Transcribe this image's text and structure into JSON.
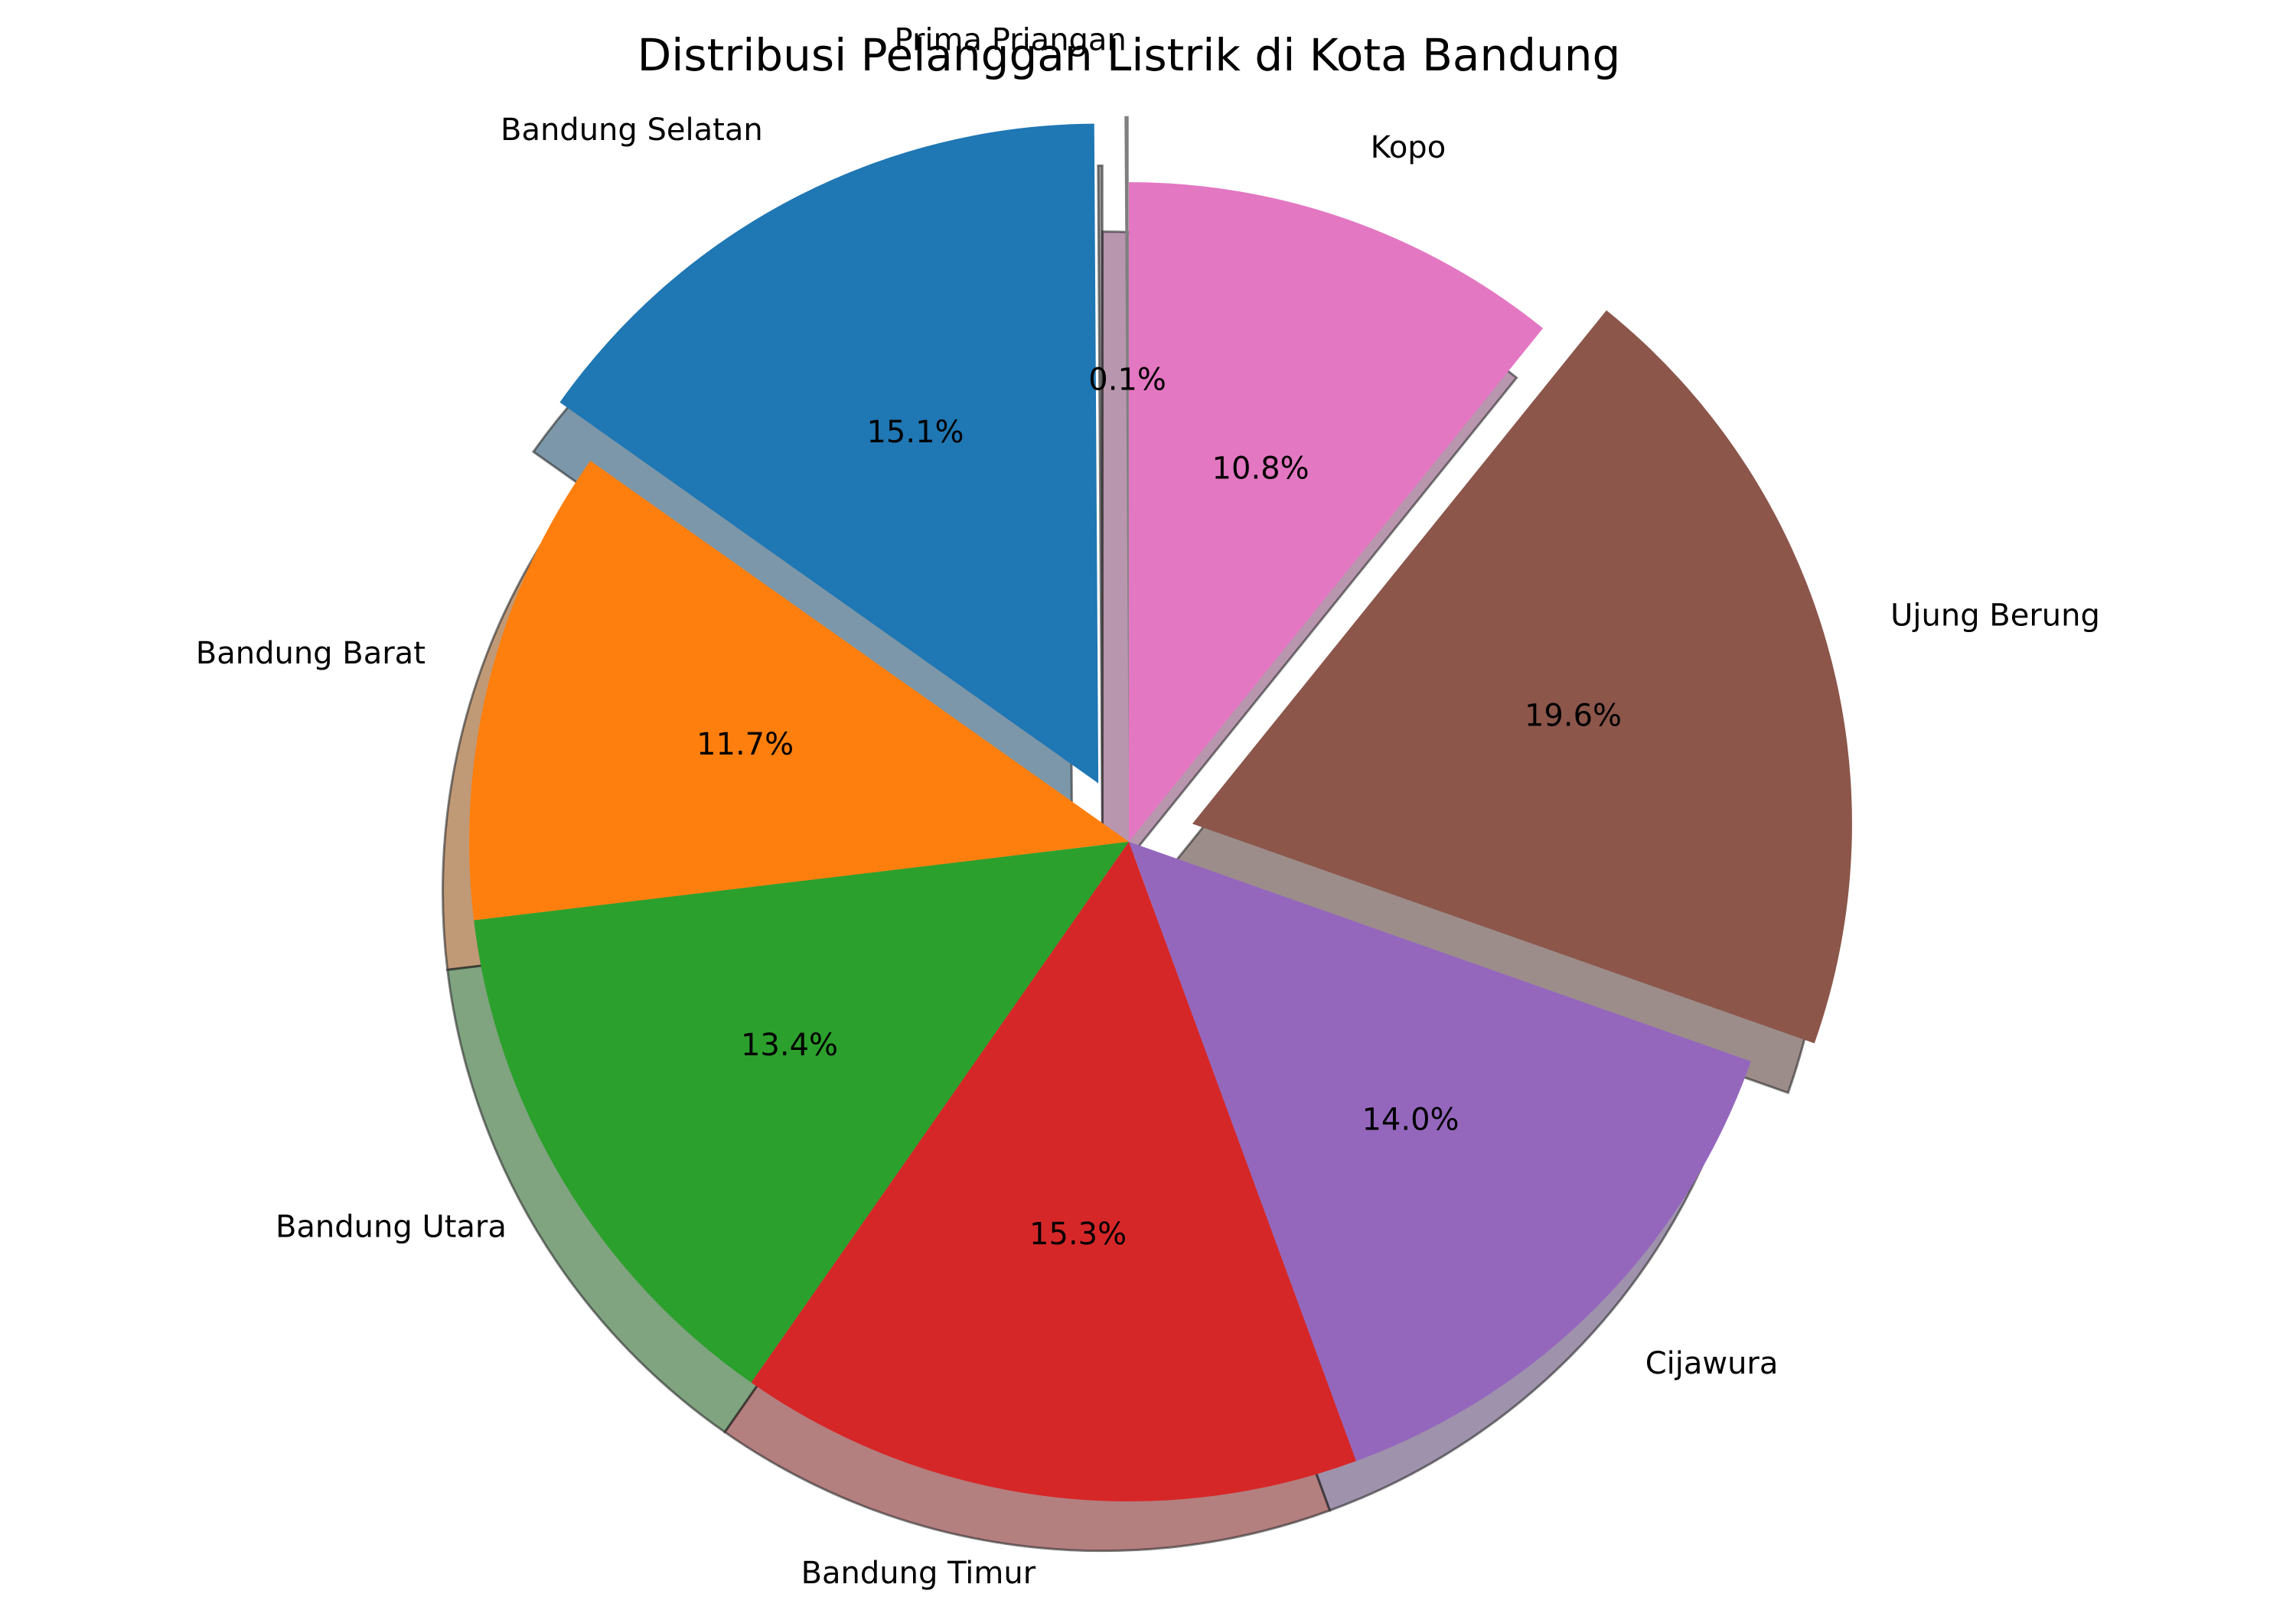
{
  "chart_data": {
    "type": "pie",
    "title": "Distribusi Pelanggan Listrik di Kota Bandung",
    "start_angle_deg": 90,
    "direction": "counterclockwise",
    "shadow": true,
    "slices": [
      {
        "label": "Prima Priangan",
        "value": 0.1,
        "pct_label": "0.1%",
        "color": "#7f7f7f",
        "exploded": true
      },
      {
        "label": "Bandung Selatan",
        "value": 15.1,
        "pct_label": "15.1%",
        "color": "#1f77b4",
        "exploded": true
      },
      {
        "label": "Bandung Barat",
        "value": 11.7,
        "pct_label": "11.7%",
        "color": "#ff7f0e",
        "exploded": false
      },
      {
        "label": "Bandung Utara",
        "value": 13.4,
        "pct_label": "13.4%",
        "color": "#2ca02c",
        "exploded": false
      },
      {
        "label": "Bandung Timur",
        "value": 15.3,
        "pct_label": "15.3%",
        "color": "#d62728",
        "exploded": false
      },
      {
        "label": "Cijawura",
        "value": 14.0,
        "pct_label": "14.0%",
        "color": "#9467bd",
        "exploded": false
      },
      {
        "label": "Ujung Berung",
        "value": 19.6,
        "pct_label": "19.6%",
        "color": "#8c564b",
        "exploded": true
      },
      {
        "label": "Kopo",
        "value": 10.8,
        "pct_label": "10.8%",
        "color": "#e377c2",
        "exploded": false
      }
    ]
  }
}
